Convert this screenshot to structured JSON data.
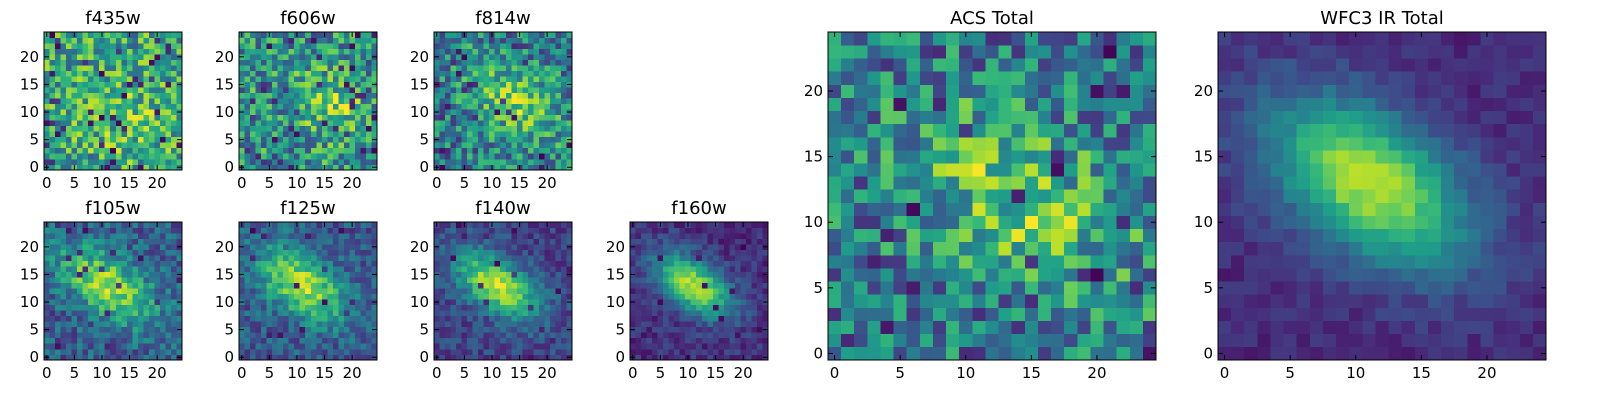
{
  "figure": {
    "background": "#ffffff"
  },
  "colormap": {
    "name": "viridis",
    "stops": [
      "#440154",
      "#482878",
      "#3e4a89",
      "#31688e",
      "#26828e",
      "#1f9e89",
      "#35b779",
      "#6ece58",
      "#b5de2b",
      "#fde725"
    ]
  },
  "chart_data": [
    {
      "type": "heatmap",
      "id": "f435w",
      "title": "f435w",
      "grid_size": [
        25,
        25
      ],
      "xticks": [
        0,
        5,
        10,
        15,
        20
      ],
      "yticks": [
        0,
        5,
        10,
        15,
        20
      ],
      "xlim": [
        -0.5,
        24.5
      ],
      "ylim": [
        -0.5,
        24.5
      ],
      "profile": {
        "center": [
          15,
          9
        ],
        "sigma": [
          6,
          6
        ],
        "angle_deg": 0,
        "peak": 0.12,
        "base": 0.58,
        "noise": 0.3,
        "dark_fraction": 0.06,
        "seed": 11
      }
    },
    {
      "type": "heatmap",
      "id": "f606w",
      "title": "f606w",
      "grid_size": [
        25,
        25
      ],
      "xticks": [
        0,
        5,
        10,
        15,
        20
      ],
      "yticks": [
        0,
        5,
        10,
        15,
        20
      ],
      "xlim": [
        -0.5,
        24.5
      ],
      "ylim": [
        -0.5,
        24.5
      ],
      "profile": {
        "center": [
          16,
          11
        ],
        "sigma": [
          6,
          4
        ],
        "angle_deg": -35,
        "peak": 0.25,
        "base": 0.5,
        "noise": 0.3,
        "dark_fraction": 0.06,
        "seed": 23
      }
    },
    {
      "type": "heatmap",
      "id": "f814w",
      "title": "f814w",
      "grid_size": [
        25,
        25
      ],
      "xticks": [
        0,
        5,
        10,
        15,
        20
      ],
      "yticks": [
        0,
        5,
        10,
        15,
        20
      ],
      "xlim": [
        -0.5,
        24.5
      ],
      "ylim": [
        -0.5,
        24.5
      ],
      "profile": {
        "center": [
          14,
          12
        ],
        "sigma": [
          7,
          4
        ],
        "angle_deg": -35,
        "peak": 0.35,
        "base": 0.42,
        "noise": 0.28,
        "dark_fraction": 0.05,
        "seed": 37
      }
    },
    {
      "type": "heatmap",
      "id": "f105w",
      "title": "f105w",
      "grid_size": [
        25,
        25
      ],
      "xticks": [
        0,
        5,
        10,
        15,
        20
      ],
      "yticks": [
        0,
        5,
        10,
        15,
        20
      ],
      "xlim": [
        -0.5,
        24.5
      ],
      "ylim": [
        -0.5,
        24.5
      ],
      "profile": {
        "center": [
          11,
          13
        ],
        "sigma": [
          7,
          3.5
        ],
        "angle_deg": -35,
        "peak": 0.55,
        "base": 0.3,
        "noise": 0.18,
        "dark_fraction": 0.05,
        "seed": 41
      }
    },
    {
      "type": "heatmap",
      "id": "f125w",
      "title": "f125w",
      "grid_size": [
        25,
        25
      ],
      "xticks": [
        0,
        5,
        10,
        15,
        20
      ],
      "yticks": [
        0,
        5,
        10,
        15,
        20
      ],
      "xlim": [
        -0.5,
        24.5
      ],
      "ylim": [
        -0.5,
        24.5
      ],
      "profile": {
        "center": [
          11,
          13
        ],
        "sigma": [
          6.5,
          3.5
        ],
        "angle_deg": -35,
        "peak": 0.6,
        "base": 0.28,
        "noise": 0.16,
        "dark_fraction": 0.04,
        "seed": 53
      }
    },
    {
      "type": "heatmap",
      "id": "f140w",
      "title": "f140w",
      "grid_size": [
        25,
        25
      ],
      "xticks": [
        0,
        5,
        10,
        15,
        20
      ],
      "yticks": [
        0,
        5,
        10,
        15,
        20
      ],
      "xlim": [
        -0.5,
        24.5
      ],
      "ylim": [
        -0.5,
        24.5
      ],
      "profile": {
        "center": [
          11,
          13
        ],
        "sigma": [
          6,
          3.2
        ],
        "angle_deg": -35,
        "peak": 0.7,
        "base": 0.2,
        "noise": 0.12,
        "dark_fraction": 0.03,
        "seed": 67
      }
    },
    {
      "type": "heatmap",
      "id": "f160w",
      "title": "f160w",
      "grid_size": [
        25,
        25
      ],
      "xticks": [
        0,
        5,
        10,
        15,
        20
      ],
      "yticks": [
        0,
        5,
        10,
        15,
        20
      ],
      "xlim": [
        -0.5,
        24.5
      ],
      "ylim": [
        -0.5,
        24.5
      ],
      "profile": {
        "center": [
          11,
          13
        ],
        "sigma": [
          5.5,
          3
        ],
        "angle_deg": -35,
        "peak": 0.75,
        "base": 0.14,
        "noise": 0.1,
        "dark_fraction": 0.04,
        "seed": 79
      }
    },
    {
      "type": "heatmap",
      "id": "acs-total",
      "title": "ACS Total",
      "grid_size": [
        25,
        25
      ],
      "xticks": [
        0,
        5,
        10,
        15,
        20
      ],
      "yticks": [
        0,
        5,
        10,
        15,
        20
      ],
      "xlim": [
        -0.5,
        24.5
      ],
      "ylim": [
        -0.5,
        24.5
      ],
      "profile": {
        "center": [
          14,
          12
        ],
        "sigma": [
          7,
          4
        ],
        "angle_deg": -35,
        "peak": 0.35,
        "base": 0.4,
        "noise": 0.3,
        "dark_fraction": 0.05,
        "seed": 89
      }
    },
    {
      "type": "heatmap",
      "id": "wfc3-ir-total",
      "title": "WFC3 IR Total",
      "grid_size": [
        25,
        25
      ],
      "xticks": [
        0,
        5,
        10,
        15,
        20
      ],
      "yticks": [
        0,
        5,
        10,
        15,
        20
      ],
      "xlim": [
        -0.5,
        24.5
      ],
      "ylim": [
        -0.5,
        24.5
      ],
      "profile": {
        "center": [
          11,
          13
        ],
        "sigma": [
          6,
          3.5
        ],
        "angle_deg": -35,
        "peak": 0.78,
        "base": 0.12,
        "noise": 0.06,
        "dark_fraction": 0.0,
        "seed": 97
      }
    }
  ]
}
